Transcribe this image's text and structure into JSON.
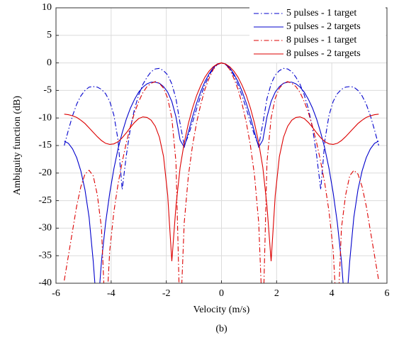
{
  "chart_data": {
    "type": "line",
    "xlabel": "Velocity (m/s)",
    "ylabel": "Ambiguity function (dB)",
    "caption": "(b)",
    "xlim": [
      -6,
      6
    ],
    "xticks": [
      -6,
      -4,
      -2,
      0,
      2,
      4,
      6
    ],
    "ylim": [
      -40,
      10
    ],
    "yticks": [
      10,
      5,
      0,
      -5,
      -10,
      -15,
      -20,
      -25,
      -30,
      -35,
      -40
    ],
    "grid": true,
    "legend": "upper right",
    "x": [
      -5.7,
      -5.55,
      -5.4,
      -5.25,
      -5.1,
      -4.95,
      -4.8,
      -4.65,
      -4.5,
      -4.35,
      -4.2,
      -4.05,
      -3.9,
      -3.75,
      -3.6,
      -3.45,
      -3.3,
      -3.15,
      -3,
      -2.85,
      -2.7,
      -2.55,
      -2.4,
      -2.25,
      -2.1,
      -1.95,
      -1.8,
      -1.65,
      -1.5,
      -1.35,
      -1.2,
      -1.05,
      -0.9,
      -0.75,
      -0.6,
      -0.45,
      -0.3,
      -0.15,
      0,
      0.15,
      0.3,
      0.45,
      0.6,
      0.75,
      0.9,
      1.05,
      1.2,
      1.35,
      1.5,
      1.65,
      1.8,
      1.95,
      2.1,
      2.25,
      2.4,
      2.55,
      2.7,
      2.85,
      3,
      3.15,
      3.3,
      3.45,
      3.6,
      3.75,
      3.9,
      4.05,
      4.2,
      4.35,
      4.5,
      4.65,
      4.8,
      4.95,
      5.1,
      5.25,
      5.4,
      5.55,
      5.7
    ],
    "series": [
      {
        "name": "5 pulses - 1 target",
        "color": "#0000cc",
        "linestyle": "dashdot",
        "values": [
          -15.0,
          -12.2,
          -9.6,
          -7.5,
          -6.0,
          -5.0,
          -4.4,
          -4.3,
          -4.4,
          -4.8,
          -5.6,
          -7.0,
          -9.5,
          -14.0,
          -23.0,
          -16.8,
          -11.8,
          -8.3,
          -5.8,
          -3.9,
          -2.6,
          -1.6,
          -1.1,
          -1.0,
          -1.4,
          -2.2,
          -3.8,
          -6.5,
          -11.0,
          -15.0,
          -13.2,
          -10.8,
          -8.3,
          -6.0,
          -4.0,
          -2.3,
          -1.0,
          -0.3,
          0,
          -0.3,
          -1.0,
          -2.3,
          -4.0,
          -6.0,
          -8.3,
          -10.8,
          -13.2,
          -15.0,
          -11.0,
          -6.5,
          -3.8,
          -2.2,
          -1.4,
          -1.0,
          -1.1,
          -1.6,
          -2.6,
          -3.9,
          -5.8,
          -8.3,
          -11.8,
          -16.8,
          -23.0,
          -14.0,
          -9.5,
          -7.0,
          -5.6,
          -4.8,
          -4.4,
          -4.3,
          -4.4,
          -5.0,
          -6.0,
          -7.5,
          -9.6,
          -12.2,
          -15.0
        ]
      },
      {
        "name": "5 pulses - 2 targets",
        "color": "#0000cc",
        "linestyle": "solid",
        "values": [
          -14.2,
          -14.6,
          -15.6,
          -17.2,
          -19.6,
          -23.0,
          -28.0,
          -36.0,
          -46.0,
          -36.0,
          -29.0,
          -23.6,
          -19.2,
          -15.6,
          -12.7,
          -10.2,
          -8.2,
          -6.6,
          -5.3,
          -4.4,
          -3.8,
          -3.5,
          -3.5,
          -3.7,
          -4.3,
          -5.3,
          -7.0,
          -9.8,
          -14.0,
          -15.3,
          -12.6,
          -9.8,
          -7.3,
          -5.2,
          -3.4,
          -2.0,
          -0.9,
          -0.2,
          0,
          -0.2,
          -0.9,
          -2.0,
          -3.4,
          -5.2,
          -7.3,
          -9.8,
          -12.6,
          -15.3,
          -14.0,
          -9.8,
          -7.0,
          -5.3,
          -4.3,
          -3.7,
          -3.5,
          -3.5,
          -3.8,
          -4.4,
          -5.3,
          -6.6,
          -8.2,
          -10.2,
          -12.7,
          -15.6,
          -19.2,
          -23.6,
          -29.0,
          -36.0,
          -46.0,
          -36.0,
          -28.0,
          -23.0,
          -19.6,
          -17.2,
          -15.6,
          -14.6,
          -14.2
        ]
      },
      {
        "name": "8 pulses - 1 target",
        "color": "#dd0000",
        "linestyle": "dashdot",
        "values": [
          -39.5,
          -35.0,
          -30.5,
          -26.0,
          -22.5,
          -20.2,
          -19.5,
          -20.5,
          -24.0,
          -30.0,
          -48.0,
          -34.0,
          -27.0,
          -22.0,
          -18.0,
          -14.5,
          -11.5,
          -9.0,
          -7.0,
          -5.4,
          -4.3,
          -3.7,
          -3.4,
          -3.7,
          -4.6,
          -6.4,
          -10.0,
          -18.0,
          -48.0,
          -29.0,
          -20.5,
          -15.0,
          -10.8,
          -7.5,
          -4.8,
          -2.8,
          -1.2,
          -0.3,
          0,
          -0.3,
          -1.2,
          -2.8,
          -4.8,
          -7.5,
          -10.8,
          -15.0,
          -20.5,
          -29.0,
          -48.0,
          -18.0,
          -10.0,
          -6.4,
          -4.6,
          -3.7,
          -3.4,
          -3.7,
          -4.3,
          -5.4,
          -7.0,
          -9.0,
          -11.5,
          -14.5,
          -18.0,
          -22.0,
          -27.0,
          -34.0,
          -48.0,
          -30.0,
          -24.0,
          -20.5,
          -19.5,
          -20.2,
          -22.5,
          -26.0,
          -30.5,
          -35.0,
          -39.5
        ]
      },
      {
        "name": "8 pulses - 2 targets",
        "color": "#dd0000",
        "linestyle": "solid",
        "values": [
          -9.3,
          -9.4,
          -9.6,
          -9.9,
          -10.4,
          -11.0,
          -11.8,
          -12.6,
          -13.4,
          -14.1,
          -14.6,
          -14.8,
          -14.7,
          -14.3,
          -13.6,
          -12.7,
          -11.7,
          -10.8,
          -10.1,
          -9.8,
          -9.9,
          -10.4,
          -11.5,
          -13.5,
          -17.0,
          -24.0,
          -36.0,
          -26.0,
          -19.0,
          -14.5,
          -11.0,
          -8.2,
          -5.9,
          -4.1,
          -2.6,
          -1.5,
          -0.7,
          -0.2,
          0,
          -0.2,
          -0.7,
          -1.5,
          -2.6,
          -4.1,
          -5.9,
          -8.2,
          -11.0,
          -14.5,
          -19.0,
          -26.0,
          -36.0,
          -24.0,
          -17.0,
          -13.5,
          -11.5,
          -10.4,
          -9.9,
          -9.8,
          -10.1,
          -10.8,
          -11.7,
          -12.7,
          -13.6,
          -14.3,
          -14.7,
          -14.8,
          -14.6,
          -14.1,
          -13.4,
          -12.6,
          -11.8,
          -11.0,
          -10.4,
          -9.9,
          -9.6,
          -9.4,
          -9.3
        ]
      }
    ]
  }
}
